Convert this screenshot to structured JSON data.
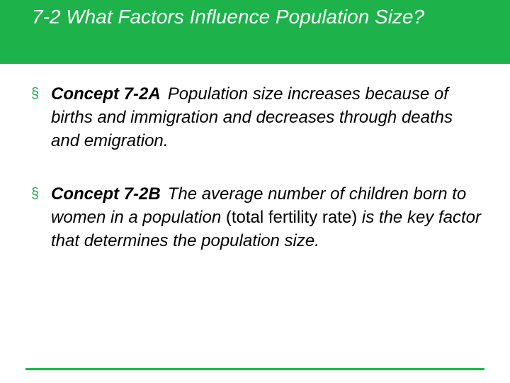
{
  "header": {
    "title": "7-2 What Factors Influence Population Size?"
  },
  "bullets": [
    {
      "marker": "§",
      "label": "Concept 7-2A",
      "parts": [
        {
          "text": "Population size increases because of births and immigration and decreases through deaths and emigration.",
          "italic": true
        }
      ]
    },
    {
      "marker": "§",
      "label": "Concept 7-2B",
      "parts": [
        {
          "text": "The average number of children born to women in a population",
          "italic": true
        },
        {
          "text": "(total fertility rate)",
          "italic": false
        },
        {
          "text": "is the key factor that determines the population size.",
          "italic": true
        }
      ]
    }
  ]
}
